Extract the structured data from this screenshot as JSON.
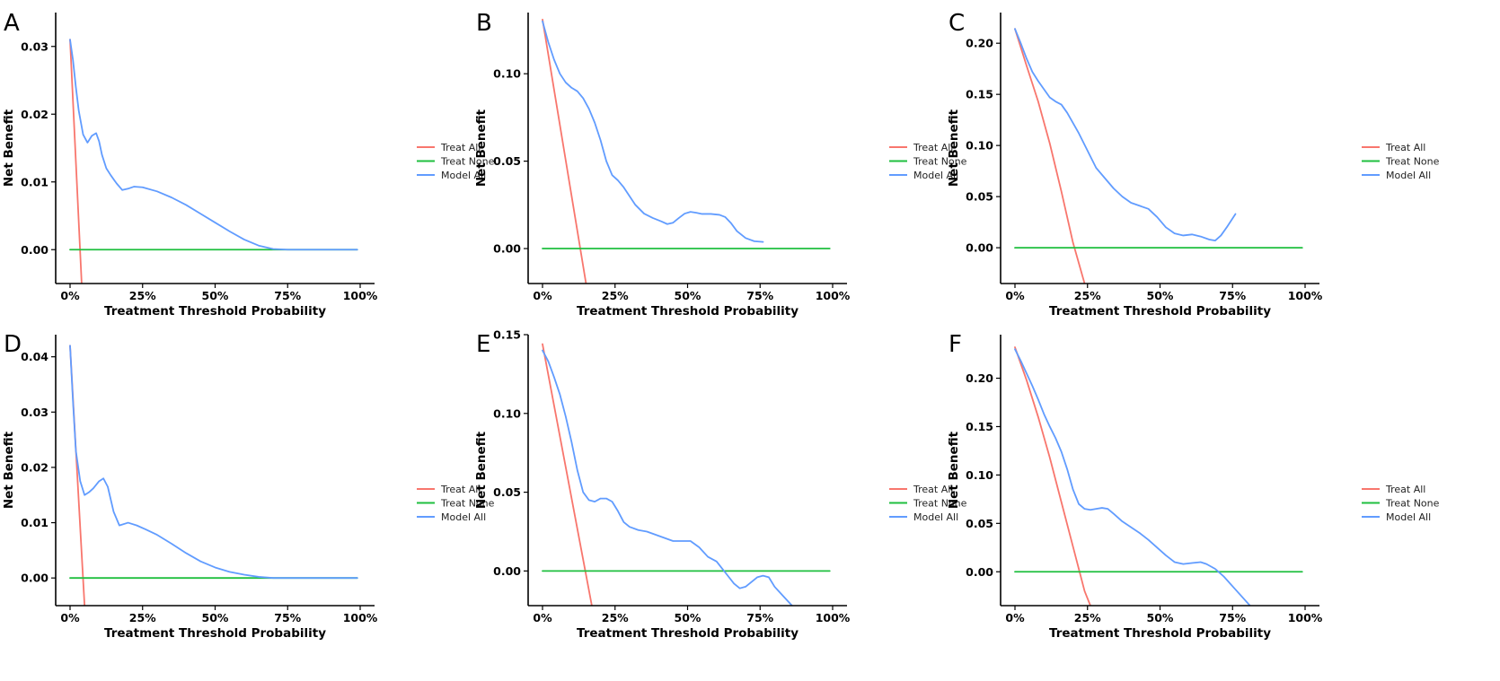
{
  "colors": {
    "treat_all": "#f8766d",
    "treat_none": "#1fbf3f",
    "model_all": "#619cff"
  },
  "chart_data": [
    {
      "panel": "A",
      "type": "line",
      "xlabel": "Treatment Threshold Probability",
      "ylabel": "Net Benefit",
      "xlim": [
        0,
        1
      ],
      "ylim": [
        -0.005,
        0.035
      ],
      "xticks": [
        0,
        0.25,
        0.5,
        0.75,
        1.0
      ],
      "xtick_labels": [
        "0%",
        "25%",
        "50%",
        "75%",
        "100%"
      ],
      "yticks": [
        0,
        0.01,
        0.02,
        0.03
      ],
      "ytick_labels": [
        "0.00",
        "0.01",
        "0.02",
        "0.03"
      ],
      "legend": [
        "Treat All",
        "Treat None",
        "Model All"
      ],
      "series": [
        {
          "name": "Treat All",
          "key": "treat_all",
          "x": [
            0,
            0.04
          ],
          "y": [
            0.031,
            -0.005
          ]
        },
        {
          "name": "Treat None",
          "key": "treat_none",
          "x": [
            0,
            0.99
          ],
          "y": [
            0,
            0
          ]
        },
        {
          "name": "Model All",
          "key": "model_all",
          "x": [
            0,
            0.01,
            0.02,
            0.03,
            0.045,
            0.06,
            0.075,
            0.09,
            0.1,
            0.11,
            0.125,
            0.14,
            0.16,
            0.18,
            0.2,
            0.22,
            0.25,
            0.3,
            0.35,
            0.4,
            0.45,
            0.5,
            0.55,
            0.6,
            0.65,
            0.7,
            0.75,
            0.8,
            0.9,
            0.99
          ],
          "y": [
            0.031,
            0.028,
            0.024,
            0.0205,
            0.017,
            0.0158,
            0.0168,
            0.0172,
            0.016,
            0.014,
            0.012,
            0.011,
            0.0098,
            0.0088,
            0.009,
            0.0093,
            0.0092,
            0.0086,
            0.0077,
            0.0066,
            0.0053,
            0.004,
            0.0027,
            0.0015,
            0.0006,
            0.0001,
            0,
            0,
            0,
            0
          ]
        }
      ]
    },
    {
      "panel": "B",
      "type": "line",
      "xlabel": "Treatment Threshold Probability",
      "ylabel": "Net Benefit",
      "xlim": [
        0,
        1
      ],
      "ylim": [
        -0.02,
        0.135
      ],
      "xticks": [
        0,
        0.25,
        0.5,
        0.75,
        1.0
      ],
      "xtick_labels": [
        "0%",
        "25%",
        "50%",
        "75%",
        "100%"
      ],
      "yticks": [
        0,
        0.05,
        0.1
      ],
      "ytick_labels": [
        "0.00",
        "0.05",
        "0.10"
      ],
      "legend": [
        "Treat All",
        "Treat None",
        "Model All"
      ],
      "series": [
        {
          "name": "Treat All",
          "key": "treat_all",
          "x": [
            0,
            0.15
          ],
          "y": [
            0.131,
            -0.02
          ]
        },
        {
          "name": "Treat None",
          "key": "treat_none",
          "x": [
            0,
            0.99
          ],
          "y": [
            0,
            0
          ]
        },
        {
          "name": "Model All",
          "key": "model_all",
          "x": [
            0,
            0.02,
            0.04,
            0.06,
            0.08,
            0.1,
            0.12,
            0.14,
            0.16,
            0.18,
            0.2,
            0.22,
            0.24,
            0.26,
            0.28,
            0.3,
            0.32,
            0.35,
            0.38,
            0.41,
            0.43,
            0.45,
            0.47,
            0.49,
            0.51,
            0.53,
            0.55,
            0.58,
            0.61,
            0.63,
            0.65,
            0.67,
            0.7,
            0.73,
            0.76
          ],
          "y": [
            0.13,
            0.118,
            0.108,
            0.1,
            0.095,
            0.092,
            0.09,
            0.086,
            0.08,
            0.072,
            0.062,
            0.05,
            0.042,
            0.039,
            0.035,
            0.03,
            0.025,
            0.02,
            0.0175,
            0.0155,
            0.014,
            0.0148,
            0.0175,
            0.02,
            0.021,
            0.0205,
            0.0198,
            0.0198,
            0.0193,
            0.018,
            0.0145,
            0.01,
            0.006,
            0.0042,
            0.0038
          ]
        }
      ]
    },
    {
      "panel": "C",
      "type": "line",
      "xlabel": "Treatment Threshold Probability",
      "ylabel": "Net Benefit",
      "xlim": [
        0,
        1
      ],
      "ylim": [
        -0.035,
        0.23
      ],
      "xticks": [
        0,
        0.25,
        0.5,
        0.75,
        1.0
      ],
      "xtick_labels": [
        "0%",
        "25%",
        "50%",
        "75%",
        "100%"
      ],
      "yticks": [
        0,
        0.05,
        0.1,
        0.15,
        0.2
      ],
      "ytick_labels": [
        "0.00",
        "0.05",
        "0.10",
        "0.15",
        "0.20"
      ],
      "legend": [
        "Treat All",
        "Treat None",
        "Model All"
      ],
      "series": [
        {
          "name": "Treat All",
          "key": "treat_all",
          "x": [
            0,
            0.04,
            0.08,
            0.12,
            0.16,
            0.2,
            0.24
          ],
          "y": [
            0.214,
            0.178,
            0.143,
            0.102,
            0.055,
            0.005,
            -0.035
          ]
        },
        {
          "name": "Treat None",
          "key": "treat_none",
          "x": [
            0,
            0.99
          ],
          "y": [
            0,
            0
          ]
        },
        {
          "name": "Model All",
          "key": "model_all",
          "x": [
            0,
            0.02,
            0.04,
            0.06,
            0.08,
            0.1,
            0.12,
            0.14,
            0.16,
            0.18,
            0.2,
            0.22,
            0.25,
            0.28,
            0.31,
            0.34,
            0.37,
            0.4,
            0.43,
            0.46,
            0.49,
            0.52,
            0.55,
            0.58,
            0.61,
            0.64,
            0.67,
            0.69,
            0.71,
            0.73,
            0.76
          ],
          "y": [
            0.214,
            0.2,
            0.185,
            0.172,
            0.163,
            0.155,
            0.147,
            0.143,
            0.14,
            0.132,
            0.122,
            0.112,
            0.095,
            0.078,
            0.068,
            0.058,
            0.05,
            0.044,
            0.041,
            0.038,
            0.03,
            0.02,
            0.014,
            0.012,
            0.013,
            0.011,
            0.008,
            0.007,
            0.012,
            0.02,
            0.033
          ]
        }
      ]
    },
    {
      "panel": "D",
      "type": "line",
      "xlabel": "Treatment Threshold Probability",
      "ylabel": "Net Benefit",
      "xlim": [
        0,
        1
      ],
      "ylim": [
        -0.005,
        0.044
      ],
      "xticks": [
        0,
        0.25,
        0.5,
        0.75,
        1.0
      ],
      "xtick_labels": [
        "0%",
        "25%",
        "50%",
        "75%",
        "100%"
      ],
      "yticks": [
        0,
        0.01,
        0.02,
        0.03,
        0.04
      ],
      "ytick_labels": [
        "0.00",
        "0.01",
        "0.02",
        "0.03",
        "0.04"
      ],
      "legend": [
        "Treat All",
        "Treat None",
        "Model All"
      ],
      "series": [
        {
          "name": "Treat All",
          "key": "treat_all",
          "x": [
            0,
            0.05
          ],
          "y": [
            0.042,
            -0.005
          ]
        },
        {
          "name": "Treat None",
          "key": "treat_none",
          "x": [
            0,
            0.99
          ],
          "y": [
            0,
            0
          ]
        },
        {
          "name": "Model All",
          "key": "model_all",
          "x": [
            0,
            0.01,
            0.02,
            0.035,
            0.05,
            0.065,
            0.08,
            0.1,
            0.115,
            0.13,
            0.15,
            0.17,
            0.2,
            0.23,
            0.26,
            0.3,
            0.35,
            0.4,
            0.45,
            0.5,
            0.55,
            0.6,
            0.65,
            0.7,
            0.75,
            0.8,
            0.9,
            0.99
          ],
          "y": [
            0.042,
            0.032,
            0.023,
            0.0175,
            0.015,
            0.0155,
            0.0162,
            0.0175,
            0.018,
            0.0165,
            0.012,
            0.0095,
            0.01,
            0.0095,
            0.0088,
            0.0078,
            0.0062,
            0.0045,
            0.003,
            0.0019,
            0.0011,
            0.0006,
            0.0002,
            0,
            0,
            0,
            0,
            0
          ]
        }
      ]
    },
    {
      "panel": "E",
      "type": "line",
      "xlabel": "Treatment Threshold Probability",
      "ylabel": "Net Benefit",
      "xlim": [
        0,
        1
      ],
      "ylim": [
        -0.022,
        0.15
      ],
      "xticks": [
        0,
        0.25,
        0.5,
        0.75,
        1.0
      ],
      "xtick_labels": [
        "0%",
        "25%",
        "50%",
        "75%",
        "100%"
      ],
      "yticks": [
        0,
        0.05,
        0.1,
        0.15
      ],
      "ytick_labels": [
        "0.00",
        "0.05",
        "0.10",
        "0.15"
      ],
      "legend": [
        "Treat All",
        "Treat None",
        "Model All"
      ],
      "series": [
        {
          "name": "Treat All",
          "key": "treat_all",
          "x": [
            0,
            0.17
          ],
          "y": [
            0.144,
            -0.022
          ]
        },
        {
          "name": "Treat None",
          "key": "treat_none",
          "x": [
            0,
            0.99
          ],
          "y": [
            0,
            0
          ]
        },
        {
          "name": "Model All",
          "key": "model_all",
          "x": [
            0,
            0.02,
            0.04,
            0.06,
            0.08,
            0.1,
            0.12,
            0.14,
            0.16,
            0.18,
            0.2,
            0.22,
            0.24,
            0.26,
            0.28,
            0.3,
            0.33,
            0.36,
            0.39,
            0.42,
            0.45,
            0.48,
            0.51,
            0.54,
            0.57,
            0.6,
            0.63,
            0.66,
            0.68,
            0.7,
            0.72,
            0.74,
            0.76,
            0.78,
            0.8,
            0.83,
            0.86
          ],
          "y": [
            0.14,
            0.133,
            0.123,
            0.112,
            0.098,
            0.082,
            0.064,
            0.05,
            0.045,
            0.044,
            0.046,
            0.046,
            0.044,
            0.038,
            0.031,
            0.028,
            0.026,
            0.025,
            0.023,
            0.021,
            0.019,
            0.019,
            0.019,
            0.015,
            0.009,
            0.006,
            -0.001,
            -0.008,
            -0.011,
            -0.01,
            -0.007,
            -0.004,
            -0.003,
            -0.004,
            -0.01,
            -0.016,
            -0.022
          ]
        }
      ]
    },
    {
      "panel": "F",
      "type": "line",
      "xlabel": "Treatment Threshold Probability",
      "ylabel": "Net Benefit",
      "xlim": [
        0,
        1
      ],
      "ylim": [
        -0.035,
        0.245
      ],
      "xticks": [
        0,
        0.25,
        0.5,
        0.75,
        1.0
      ],
      "xtick_labels": [
        "0%",
        "25%",
        "50%",
        "75%",
        "100%"
      ],
      "yticks": [
        0,
        0.05,
        0.1,
        0.15,
        0.2
      ],
      "ytick_labels": [
        "0.00",
        "0.05",
        "0.10",
        "0.15",
        "0.20"
      ],
      "legend": [
        "Treat All",
        "Treat None",
        "Model All"
      ],
      "series": [
        {
          "name": "Treat All",
          "key": "treat_all",
          "x": [
            0,
            0.04,
            0.08,
            0.12,
            0.16,
            0.2,
            0.24,
            0.26
          ],
          "y": [
            0.232,
            0.198,
            0.16,
            0.118,
            0.072,
            0.026,
            -0.02,
            -0.035
          ]
        },
        {
          "name": "Treat None",
          "key": "treat_none",
          "x": [
            0,
            0.99
          ],
          "y": [
            0,
            0
          ]
        },
        {
          "name": "Model All",
          "key": "model_all",
          "x": [
            0,
            0.02,
            0.04,
            0.06,
            0.08,
            0.1,
            0.12,
            0.14,
            0.16,
            0.18,
            0.2,
            0.22,
            0.24,
            0.26,
            0.28,
            0.3,
            0.32,
            0.34,
            0.37,
            0.4,
            0.43,
            0.46,
            0.49,
            0.52,
            0.55,
            0.58,
            0.61,
            0.64,
            0.66,
            0.69,
            0.72,
            0.75,
            0.78,
            0.81
          ],
          "y": [
            0.23,
            0.218,
            0.205,
            0.192,
            0.178,
            0.163,
            0.15,
            0.138,
            0.124,
            0.106,
            0.085,
            0.07,
            0.065,
            0.064,
            0.065,
            0.066,
            0.065,
            0.06,
            0.052,
            0.046,
            0.04,
            0.033,
            0.025,
            0.017,
            0.01,
            0.008,
            0.009,
            0.01,
            0.008,
            0.003,
            -0.005,
            -0.015,
            -0.025,
            -0.035
          ]
        }
      ]
    }
  ]
}
